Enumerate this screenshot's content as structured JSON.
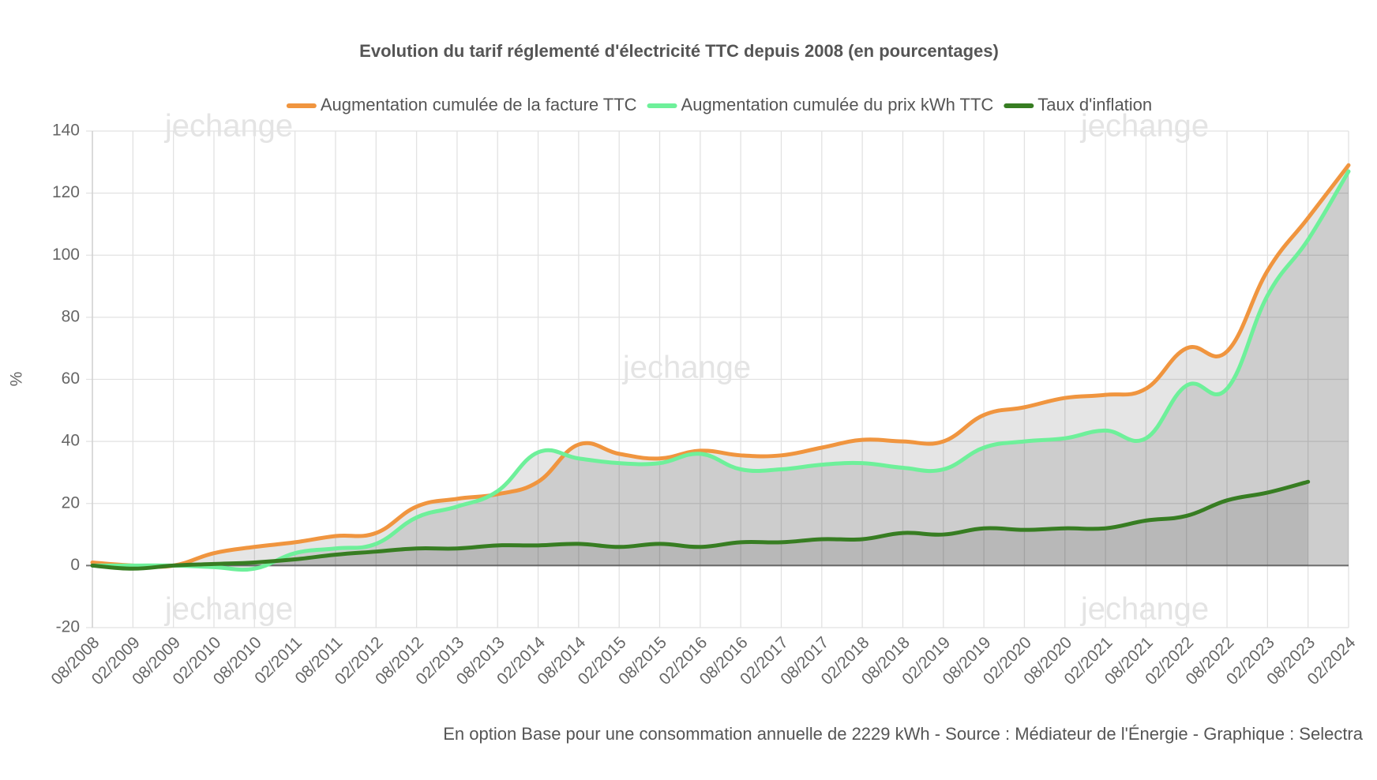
{
  "chart_data": {
    "type": "line",
    "title": "Evolution du tarif réglementé d'électricité TTC depuis 2008 (en pourcentages)",
    "y_label": "%",
    "footnote": "En option Base pour une consommation annuelle de 2229 kWh - Source : Médiateur de l'Énergie - Graphique : Selectra",
    "watermark": "jechange",
    "categories": [
      "08/2008",
      "02/2009",
      "08/2009",
      "02/2010",
      "08/2010",
      "02/2011",
      "08/2011",
      "02/2012",
      "08/2012",
      "02/2013",
      "08/2013",
      "02/2014",
      "08/2014",
      "02/2015",
      "08/2015",
      "02/2016",
      "08/2016",
      "02/2017",
      "08/2017",
      "02/2018",
      "08/2018",
      "02/2019",
      "08/2019",
      "02/2020",
      "08/2020",
      "02/2021",
      "08/2021",
      "02/2022",
      "08/2022",
      "02/2023",
      "08/2023",
      "02/2024"
    ],
    "series": [
      {
        "name": "Augmentation cumulée de la facture TTC",
        "color": "#f0953f",
        "values": [
          1,
          0,
          0,
          4,
          6,
          7.5,
          9.5,
          10.5,
          19,
          21.5,
          23,
          27,
          39,
          36,
          34.5,
          37,
          35.5,
          35.5,
          38,
          40.5,
          40,
          40,
          48.5,
          51,
          54,
          55,
          57,
          70,
          69,
          95,
          112,
          129
        ]
      },
      {
        "name": "Augmentation cumulée du prix kWh TTC",
        "color": "#6ef09a",
        "values": [
          0,
          0,
          0,
          -0.5,
          -1,
          4,
          5.5,
          7,
          15.5,
          19,
          24,
          36.5,
          34.5,
          33,
          33,
          36,
          31,
          31,
          32.5,
          33,
          31.5,
          31,
          38,
          40,
          41,
          43.5,
          41,
          58,
          57,
          87,
          105,
          127
        ]
      },
      {
        "name": "Taux d'inflation",
        "color": "#377d22",
        "values": [
          0,
          -1,
          0,
          0.5,
          1,
          2,
          3.5,
          4.5,
          5.5,
          5.5,
          6.5,
          6.5,
          7,
          6,
          7,
          6,
          7.5,
          7.5,
          8.5,
          8.5,
          10.5,
          10,
          12,
          11.5,
          12,
          12,
          14.5,
          16,
          21,
          23.5,
          27,
          null
        ]
      }
    ],
    "ylim": [
      -20,
      140
    ],
    "yticks": [
      -20,
      0,
      20,
      40,
      60,
      80,
      100,
      120,
      140
    ],
    "grid": true
  }
}
